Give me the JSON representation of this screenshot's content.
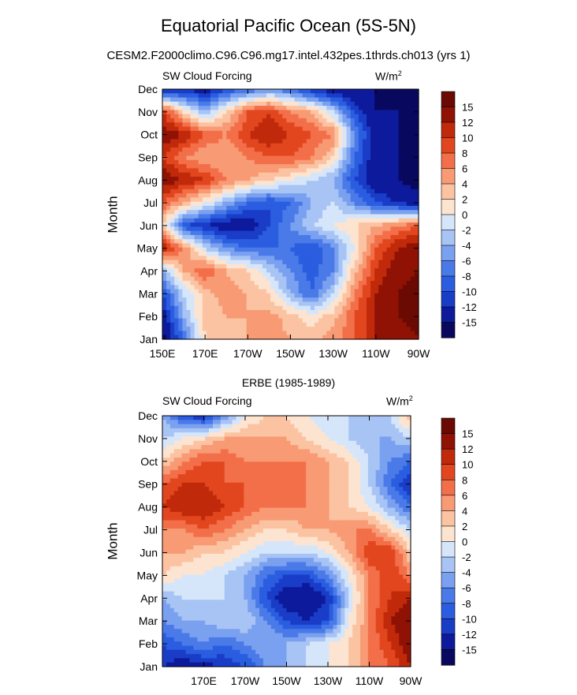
{
  "title": "Equatorial Pacific Ocean (5S-5N)",
  "subtitle": "CESM2.F2000climo.C96.C96.mg17.intel.432pes.1thrds.ch013 (yrs 1)",
  "chart_data": [
    {
      "type": "heatmap",
      "panel_title": "",
      "left_label": "SW Cloud Forcing",
      "units_label": "W/m",
      "units_superscript": "2",
      "ylabel": "Month",
      "yticks": [
        "Jan",
        "Feb",
        "Mar",
        "Apr",
        "May",
        "Jun",
        "Jul",
        "Aug",
        "Sep",
        "Oct",
        "Nov",
        "Dec"
      ],
      "xticks": [
        "150E",
        "170E",
        "170W",
        "150W",
        "130W",
        "110W",
        "90W"
      ],
      "xlim": [
        150,
        270
      ],
      "levels": [
        -15,
        -12,
        -10,
        -8,
        -6,
        -4,
        -2,
        0,
        2,
        4,
        6,
        8,
        10,
        12,
        15
      ],
      "colorbar_labels": [
        "15",
        "12",
        "10",
        "8",
        "6",
        "4",
        "2",
        "0",
        "-2",
        "-4",
        "-6",
        "-8",
        "-10",
        "-12",
        "-15"
      ],
      "lon": [
        150,
        160,
        170,
        180,
        190,
        200,
        210,
        220,
        230,
        240,
        250,
        260,
        270
      ],
      "values": [
        [
          -16,
          -8,
          2,
          3,
          4,
          5,
          4,
          3,
          5,
          8,
          12,
          14,
          15
        ],
        [
          -14,
          -4,
          3,
          4,
          4,
          5,
          3,
          1,
          3,
          8,
          12,
          15,
          16
        ],
        [
          -10,
          -2,
          3,
          5,
          4,
          2,
          -4,
          -8,
          -2,
          6,
          12,
          15,
          16
        ],
        [
          -4,
          4,
          8,
          4,
          2,
          -2,
          -6,
          -9,
          -6,
          3,
          10,
          14,
          15
        ],
        [
          12,
          6,
          -2,
          -6,
          -8,
          -8,
          -8,
          -10,
          -6,
          0,
          8,
          12,
          14
        ],
        [
          2,
          -10,
          -12,
          -14,
          -14,
          -10,
          -6,
          -2,
          0,
          2,
          4,
          6,
          8
        ],
        [
          8,
          4,
          0,
          -4,
          -8,
          -10,
          -8,
          -4,
          -2,
          -6,
          -10,
          -12,
          -14
        ],
        [
          14,
          12,
          10,
          6,
          4,
          2,
          0,
          -2,
          -4,
          -10,
          -14,
          -15,
          -16
        ],
        [
          10,
          6,
          4,
          4,
          6,
          8,
          8,
          6,
          2,
          -8,
          -14,
          -15,
          -16
        ],
        [
          14,
          12,
          8,
          6,
          10,
          12,
          10,
          8,
          6,
          -6,
          -14,
          -15,
          -16
        ],
        [
          10,
          2,
          -4,
          2,
          8,
          10,
          6,
          4,
          -2,
          -10,
          -15,
          -15,
          -16
        ],
        [
          -14,
          -12,
          -14,
          -10,
          -8,
          -6,
          -8,
          -12,
          -14,
          -15,
          -15,
          -16,
          -16
        ]
      ]
    },
    {
      "type": "heatmap",
      "panel_title": "ERBE (1985-1989)",
      "left_label": "SW Cloud Forcing",
      "units_label": "W/m",
      "units_superscript": "2",
      "ylabel": "Month",
      "yticks": [
        "Jan",
        "Feb",
        "Mar",
        "Apr",
        "May",
        "Jun",
        "Jul",
        "Aug",
        "Sep",
        "Oct",
        "Nov",
        "Dec"
      ],
      "xticks": [
        "170E",
        "170W",
        "150W",
        "130W",
        "110W",
        "90W"
      ],
      "xlim": [
        150,
        270
      ],
      "levels": [
        -15,
        -12,
        -10,
        -8,
        -6,
        -4,
        -2,
        0,
        2,
        4,
        6,
        8,
        10,
        12,
        15
      ],
      "colorbar_labels": [
        "15",
        "12",
        "10",
        "8",
        "6",
        "4",
        "2",
        "0",
        "-2",
        "-4",
        "-6",
        "-8",
        "-10",
        "-12",
        "-15"
      ],
      "lon": [
        150,
        160,
        170,
        180,
        190,
        200,
        210,
        220,
        230,
        240,
        250,
        260,
        270
      ],
      "values": [
        [
          -12,
          -14,
          -13,
          -12,
          -10,
          -6,
          -4,
          -2,
          0,
          2,
          6,
          8,
          12
        ],
        [
          -10,
          -8,
          -6,
          -8,
          -6,
          -4,
          -4,
          -2,
          0,
          2,
          6,
          10,
          14
        ],
        [
          -6,
          -4,
          -4,
          -2,
          -2,
          -6,
          -10,
          -12,
          -10,
          0,
          6,
          12,
          14
        ],
        [
          -4,
          -2,
          -2,
          -2,
          -4,
          -10,
          -14,
          -15,
          -12,
          -2,
          6,
          10,
          12
        ],
        [
          2,
          0,
          0,
          -2,
          -4,
          -8,
          -10,
          -10,
          -6,
          0,
          6,
          10,
          6
        ],
        [
          4,
          4,
          2,
          2,
          0,
          -2,
          -2,
          -2,
          0,
          4,
          10,
          10,
          2
        ],
        [
          6,
          6,
          8,
          6,
          4,
          2,
          2,
          4,
          4,
          6,
          6,
          2,
          -2
        ],
        [
          10,
          12,
          12,
          10,
          8,
          6,
          6,
          6,
          4,
          2,
          0,
          -4,
          -8
        ],
        [
          8,
          10,
          10,
          8,
          8,
          6,
          6,
          6,
          4,
          2,
          -2,
          -8,
          -12
        ],
        [
          2,
          6,
          8,
          8,
          6,
          6,
          6,
          6,
          4,
          2,
          -2,
          -6,
          -8
        ],
        [
          -2,
          0,
          2,
          4,
          4,
          4,
          4,
          2,
          0,
          -2,
          -4,
          -4,
          -2
        ],
        [
          -4,
          -10,
          -12,
          -6,
          0,
          2,
          2,
          0,
          -2,
          -2,
          -2,
          -2,
          4
        ]
      ]
    }
  ],
  "colors": {
    "palette": [
      "#08085e",
      "#0d1a9c",
      "#1a3dc8",
      "#2a5de0",
      "#4a7ae8",
      "#7aa0f0",
      "#a8c4f5",
      "#d6e6fa",
      "#fde4d0",
      "#fbc3a2",
      "#f89a74",
      "#f26f49",
      "#e2461f",
      "#c02a0a",
      "#8f1205",
      "#6a0a02"
    ]
  }
}
